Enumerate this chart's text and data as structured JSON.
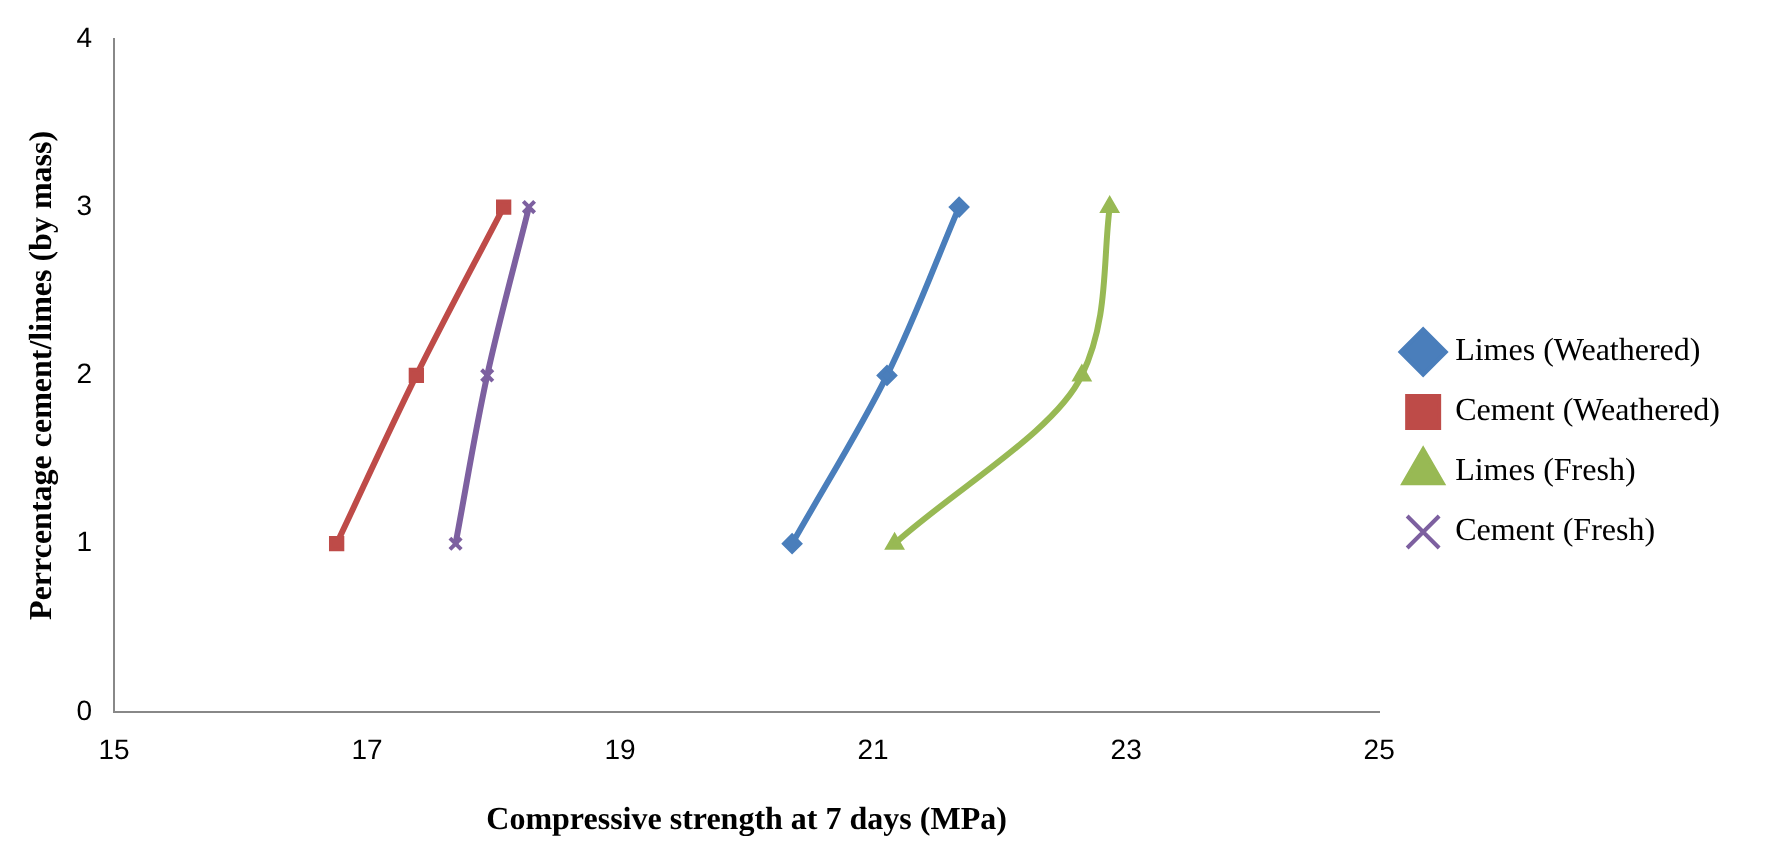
{
  "chart_data": {
    "type": "line",
    "xlabel": "Compressive strength at 7 days (MPa)",
    "ylabel": "Perrcentage cement/limes (by mass)",
    "xlim": [
      15,
      25
    ],
    "xticks": [
      15,
      17,
      19,
      21,
      23,
      25
    ],
    "ylim": [
      0,
      4
    ],
    "yticks": [
      0,
      1,
      2,
      3,
      4
    ],
    "grid": false,
    "legend": "right",
    "series": [
      {
        "name": "Limes (Weathered)",
        "color": "#4a7ebb",
        "marker": "diamond",
        "x": [
          20.36,
          21.11,
          21.68
        ],
        "values": [
          1,
          2,
          3
        ]
      },
      {
        "name": "Cement (Weathered)",
        "color": "#be4b48",
        "marker": "square",
        "x": [
          16.76,
          17.39,
          18.08
        ],
        "values": [
          1,
          2,
          3
        ]
      },
      {
        "name": "Limes (Fresh)",
        "color": "#98b954",
        "marker": "triangle",
        "x": [
          21.17,
          22.65,
          22.87
        ],
        "values": [
          1,
          2,
          3
        ]
      },
      {
        "name": "Cement (Fresh)",
        "color": "#7d60a0",
        "marker": "cross",
        "x": [
          17.7,
          17.95,
          18.28
        ],
        "values": [
          1,
          2,
          3
        ]
      }
    ]
  }
}
